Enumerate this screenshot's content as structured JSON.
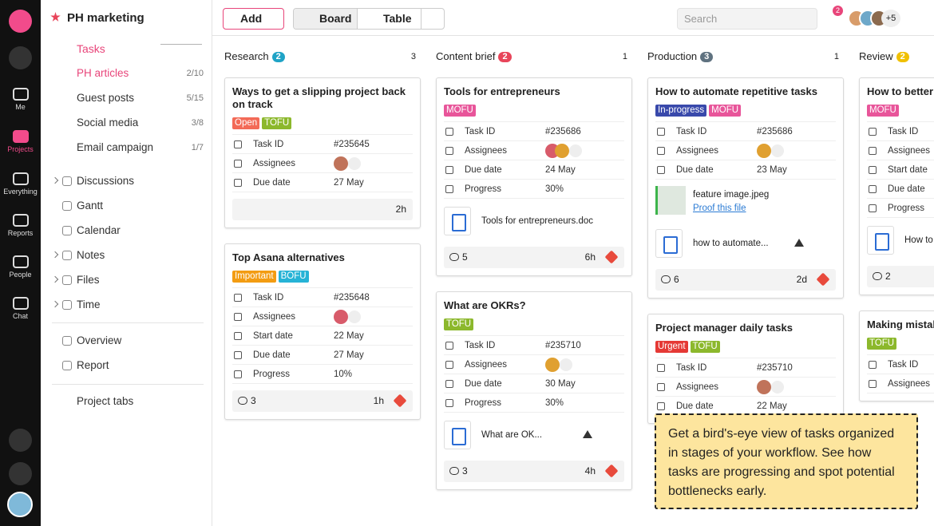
{
  "rail": {
    "items": [
      "Me",
      "Projects",
      "Everything",
      "Reports",
      "People",
      "Chat"
    ],
    "active": 1
  },
  "sidebar": {
    "project": "PH marketing",
    "tasks": "Tasks",
    "lists": [
      {
        "name": "PH articles",
        "count": "2/10",
        "active": true
      },
      {
        "name": "Guest posts",
        "count": "5/15"
      },
      {
        "name": "Social media",
        "count": "3/8"
      },
      {
        "name": "Email campaign",
        "count": "1/7"
      }
    ],
    "nav": [
      {
        "label": "Discussions",
        "chevron": true
      },
      {
        "label": "Gantt"
      },
      {
        "label": "Calendar"
      },
      {
        "label": "Notes",
        "chevron": true
      },
      {
        "label": "Files",
        "chevron": true
      },
      {
        "label": "Time",
        "chevron": true
      }
    ],
    "nav2": [
      "Overview",
      "Report"
    ],
    "add_tab": "Project tabs"
  },
  "toolbar": {
    "add": "Add",
    "views": [
      "Board",
      "Table"
    ],
    "active_view": 0,
    "search": "Search",
    "filter_badge": 2,
    "members_more": "+5"
  },
  "columns": [
    {
      "name": "Research",
      "count": 2,
      "color": "#1fa3c6",
      "members": 3,
      "cards": [
        {
          "title": "Ways to get a slipping project back on track",
          "tags": [
            {
              "text": "Open",
              "color": "#f36a57"
            },
            {
              "text": "TOFU",
              "color": "#8cb82c"
            }
          ],
          "fields": [
            {
              "label": "Task ID",
              "value": "#235645"
            },
            {
              "label": "Assignees",
              "avatars": 1
            },
            {
              "label": "Due date",
              "value": "27 May"
            }
          ],
          "footer": {
            "time": "2h"
          }
        },
        {
          "title": "Top Asana alternatives",
          "tags": [
            {
              "text": "Important",
              "color": "#f39c12"
            },
            {
              "text": "BOFU",
              "color": "#26b3d6"
            }
          ],
          "fields": [
            {
              "label": "Task ID",
              "value": "#235648"
            },
            {
              "label": "Assignees",
              "avatars": 1
            },
            {
              "label": "Start date",
              "value": "22 May"
            },
            {
              "label": "Due date",
              "value": "27 May"
            },
            {
              "label": "Progress",
              "value": "10%"
            }
          ],
          "footer": {
            "comments": 3,
            "time": "1h",
            "priority": true
          }
        }
      ]
    },
    {
      "name": "Content brief",
      "count": 2,
      "color": "#e8455a",
      "members": 1,
      "cards": [
        {
          "title": "Tools for entrepreneurs",
          "tags": [
            {
              "text": "MOFU",
              "color": "#e8559a"
            }
          ],
          "fields": [
            {
              "label": "Task ID",
              "value": "#235686"
            },
            {
              "label": "Assignees",
              "avatars": 2
            },
            {
              "label": "Due date",
              "value": "24 May"
            },
            {
              "label": "Progress",
              "value": "30%"
            }
          ],
          "attachments": [
            {
              "name": "Tools for entrepreneurs.doc",
              "kind": "doc"
            }
          ],
          "footer": {
            "comments": 5,
            "time": "6h",
            "priority": true
          }
        },
        {
          "title": "What are OKRs?",
          "tags": [
            {
              "text": "TOFU",
              "color": "#8cb82c"
            }
          ],
          "fields": [
            {
              "label": "Task ID",
              "value": "#235710"
            },
            {
              "label": "Assignees",
              "avatars": 1
            },
            {
              "label": "Due date",
              "value": "30 May"
            },
            {
              "label": "Progress",
              "value": "30%"
            }
          ],
          "attachments": [
            {
              "name": "What are OK...",
              "kind": "doc",
              "drive": true
            }
          ],
          "footer": {
            "comments": 3,
            "time": "4h",
            "priority": true
          }
        }
      ]
    },
    {
      "name": "Production",
      "count": 3,
      "color": "#5f7280",
      "members": 1,
      "cards": [
        {
          "title": "How to automate repetitive tasks",
          "tags": [
            {
              "text": "In-progress",
              "color": "#3949ab"
            },
            {
              "text": "MOFU",
              "color": "#e8559a"
            }
          ],
          "fields": [
            {
              "label": "Task ID",
              "value": "#235686"
            },
            {
              "label": "Assignees",
              "avatars": 1
            },
            {
              "label": "Due date",
              "value": "23 May"
            }
          ],
          "attachments": [
            {
              "name": "feature image.jpeg",
              "kind": "image",
              "link": "Proof this file"
            },
            {
              "name": "how to automate...",
              "kind": "doc",
              "drive": true
            }
          ],
          "footer": {
            "comments": 6,
            "time": "2d",
            "priority": true
          }
        },
        {
          "title": "Project manager daily tasks",
          "tags": [
            {
              "text": "Urgent",
              "color": "#e53935"
            },
            {
              "text": "TOFU",
              "color": "#8cb82c"
            }
          ],
          "fields": [
            {
              "label": "Task ID",
              "value": "#235710"
            },
            {
              "label": "Assignees",
              "avatars": 1
            },
            {
              "label": "Due date",
              "value": "22 May"
            }
          ]
        }
      ]
    },
    {
      "name": "Review",
      "count": 2,
      "color": "#f0c000",
      "cards": [
        {
          "title": "How to better h deadlines as a",
          "tags": [
            {
              "text": "MOFU",
              "color": "#e8559a"
            }
          ],
          "fields": [
            {
              "label": "Task ID"
            },
            {
              "label": "Assignees"
            },
            {
              "label": "Start date"
            },
            {
              "label": "Due date"
            },
            {
              "label": "Progress"
            }
          ],
          "attachments": [
            {
              "name": "How to",
              "kind": "doc"
            }
          ],
          "footer": {
            "comments": 2
          }
        },
        {
          "title": "Making mistak",
          "tags": [
            {
              "text": "TOFU",
              "color": "#8cb82c"
            }
          ],
          "fields": [
            {
              "label": "Task ID"
            },
            {
              "label": "Assignees"
            }
          ]
        }
      ]
    }
  ],
  "tooltip": "Get a bird's-eye view of tasks organized in stages of your workflow. See how tasks are progressing and spot potential bottlenecks early."
}
